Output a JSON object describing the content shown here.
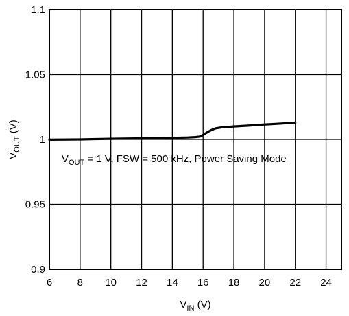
{
  "chart_data": {
    "type": "line",
    "title": "",
    "xlabel": {
      "main": "V",
      "sub": "IN",
      "unit": " (V)"
    },
    "ylabel": {
      "main": "V",
      "sub": "OUT",
      "unit": " (V)"
    },
    "xlim": [
      6,
      25
    ],
    "ylim": [
      0.9,
      1.1
    ],
    "x_ticks": [
      "6",
      "8",
      "10",
      "12",
      "14",
      "16",
      "18",
      "20",
      "22",
      "24"
    ],
    "y_ticks": [
      "0.9",
      "0.95",
      "1",
      "1.05",
      "1.1"
    ],
    "grid": true,
    "annotation": {
      "prefix": "V",
      "sub": "OUT",
      "rest": " = 1 V, FSW = 500 kHz, Power Saving Mode",
      "x": 6.8,
      "y": 0.9825
    },
    "series": [
      {
        "x": [
          6,
          8,
          10,
          12,
          14,
          15,
          15.5,
          15.8,
          16.0,
          16.2,
          16.5,
          16.8,
          17.2,
          18,
          19,
          20,
          21,
          22
        ],
        "y": [
          0.9998,
          1.0,
          1.0005,
          1.0008,
          1.0012,
          1.0015,
          1.0018,
          1.0022,
          1.0035,
          1.005,
          1.007,
          1.0085,
          1.0093,
          1.01,
          1.0107,
          1.0115,
          1.0122,
          1.013
        ]
      }
    ]
  }
}
